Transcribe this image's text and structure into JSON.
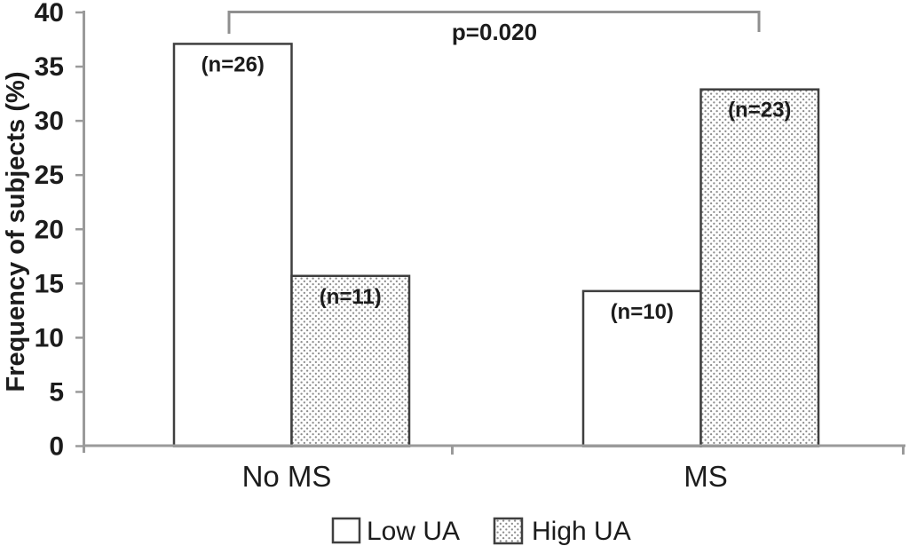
{
  "chart_data": {
    "type": "bar",
    "title": "",
    "xlabel": "",
    "ylabel": "Frequency of subjects (%)",
    "ylim": [
      0,
      40
    ],
    "ytick_step": 5,
    "grid": false,
    "legend_position": "bottom",
    "categories": [
      "No MS",
      "MS"
    ],
    "series": [
      {
        "name": "Low UA",
        "fill_style": "solid-white",
        "values": [
          37.1,
          14.3
        ],
        "count_labels": [
          "(n=26)",
          "(n=10)"
        ]
      },
      {
        "name": "High UA",
        "fill_style": "dotted",
        "values": [
          15.7,
          32.9
        ],
        "count_labels": [
          "(n=11)",
          "(n=23)"
        ]
      }
    ],
    "annotation": {
      "text": "p=0.020",
      "compares": [
        "No MS / Low UA",
        "MS / High UA"
      ]
    },
    "colors": {
      "background": "#ffffff",
      "bar_fill": "#ffffff",
      "bar_border": "#3f3f3f",
      "axis": "#9a9a9a",
      "bracket": "#8f8f8f",
      "text": "#1c1c1c",
      "pattern_dot": "#8d8d8d"
    }
  }
}
